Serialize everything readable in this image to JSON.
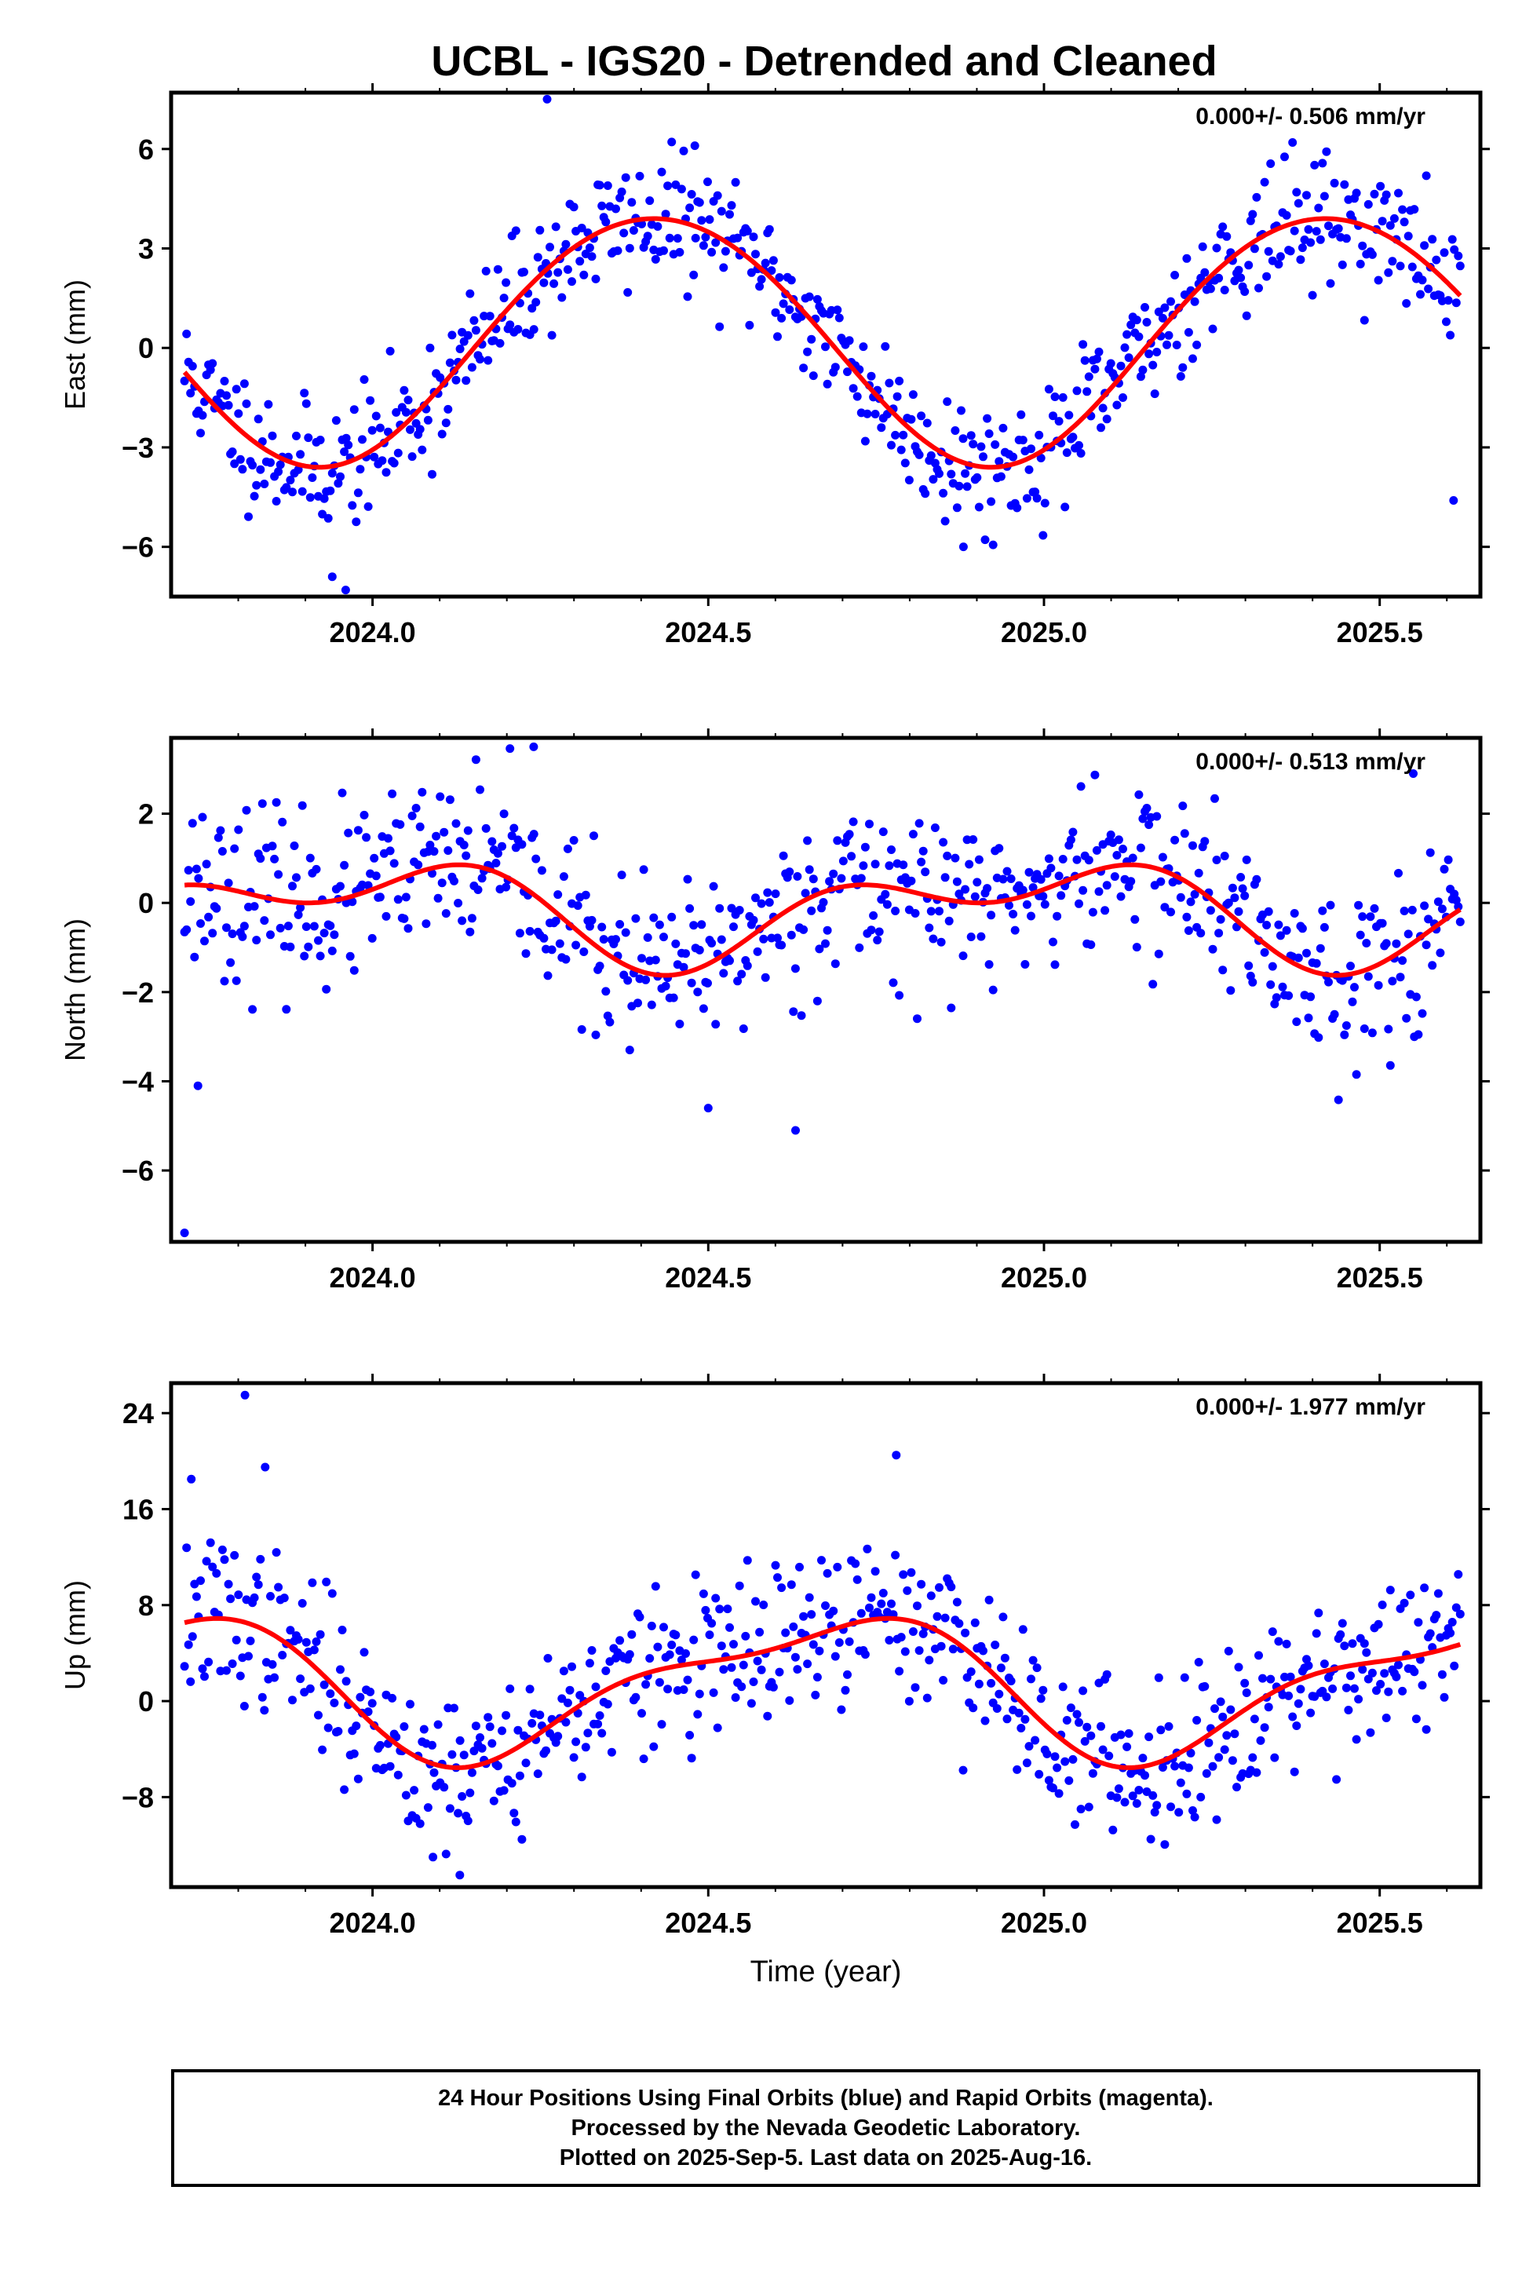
{
  "title": "UCBL - IGS20 - Detrended and Cleaned",
  "colors": {
    "points": "#0000ff",
    "fit": "#ff0000",
    "rapid": "#ff00ff",
    "frame": "#000000"
  },
  "chart_data": [
    {
      "type": "scatter",
      "ylabel": "East (mm)",
      "annotation": "0.000+/- 0.506 mm/yr",
      "xlim": [
        2023.7,
        2025.65
      ],
      "ylim": [
        -7.5,
        7.7
      ],
      "yticks": [
        6,
        3,
        0,
        -3,
        -6
      ],
      "ytick_labels": [
        "6",
        "3",
        "0",
        "−3",
        "−6"
      ],
      "xticks": [
        2024.0,
        2024.5,
        2025.0,
        2025.5
      ],
      "xtick_labels": [
        "2024.0",
        "2024.5",
        "2025.0",
        "2025.5"
      ],
      "series": [
        {
          "kind": "points",
          "x_start": 2023.72,
          "x_end": 2025.62,
          "n": 640,
          "seed": 11,
          "fit": {
            "offset": 0.3,
            "a1": 3.75,
            "p1": 2024.17,
            "a2": 0.15,
            "p2": 2024.05
          },
          "noise": 0.95,
          "outliers": [
            [
              2023.96,
              -7.3
            ],
            [
              2024.26,
              7.5
            ],
            [
              2024.88,
              -6.0
            ],
            [
              2025.61,
              -4.6
            ],
            [
              2023.94,
              -6.9
            ],
            [
              2024.48,
              6.1
            ]
          ]
        },
        {
          "kind": "fit",
          "x_start": 2023.72,
          "x_end": 2025.62,
          "fit": {
            "offset": 0.3,
            "a1": 3.75,
            "p1": 2024.17,
            "a2": 0.15,
            "p2": 2024.05
          }
        }
      ]
    },
    {
      "type": "scatter",
      "ylabel": "North (mm)",
      "annotation": "0.000+/- 0.513 mm/yr",
      "xlim": [
        2023.7,
        2025.65
      ],
      "ylim": [
        -7.6,
        3.7
      ],
      "yticks": [
        2,
        0,
        -2,
        -4,
        -6
      ],
      "ytick_labels": [
        "2",
        "0",
        "−2",
        "−4",
        "−6"
      ],
      "xticks": [
        2024.0,
        2024.5,
        2025.0,
        2025.5
      ],
      "xtick_labels": [
        "2024.0",
        "2024.5",
        "2025.0",
        "2025.5"
      ],
      "series": [
        {
          "kind": "points",
          "x_start": 2023.72,
          "x_end": 2025.62,
          "n": 640,
          "seed": 23,
          "fit": {
            "offset": -0.15,
            "a1": 0.85,
            "p1": 2023.72,
            "a2": 0.65,
            "p2": 2024.05
          },
          "noise": 0.95,
          "outliers": [
            [
              2023.72,
              -7.4
            ],
            [
              2024.63,
              -5.1
            ],
            [
              2024.5,
              -4.6
            ],
            [
              2023.74,
              -4.1
            ],
            [
              2024.24,
              3.5
            ],
            [
              2025.55,
              2.9
            ]
          ]
        },
        {
          "kind": "fit",
          "x_start": 2023.72,
          "x_end": 2025.62,
          "fit": {
            "offset": -0.15,
            "a1": 0.85,
            "p1": 2023.72,
            "a2": 0.65,
            "p2": 2024.05
          }
        }
      ]
    },
    {
      "type": "scatter",
      "ylabel": "Up (mm)",
      "xlabel": "Time (year)",
      "annotation": "0.000+/- 1.977 mm/yr",
      "xlim": [
        2023.7,
        2025.65
      ],
      "ylim": [
        -15.5,
        26.5
      ],
      "yticks": [
        24,
        16,
        8,
        0,
        -8
      ],
      "ytick_labels": [
        "24",
        "16",
        "8",
        "0",
        "−8"
      ],
      "xticks": [
        2024.0,
        2024.5,
        2025.0,
        2025.5
      ],
      "xtick_labels": [
        "2024.0",
        "2024.5",
        "2025.0",
        "2025.5"
      ],
      "series": [
        {
          "kind": "points",
          "x_start": 2023.72,
          "x_end": 2025.62,
          "n": 640,
          "seed": 37,
          "fit": {
            "offset": 1.4,
            "a1": 5.4,
            "p1": 2024.42,
            "a2": 1.9,
            "p2": 2024.22
          },
          "noise": 3.3,
          "outliers": [
            [
              2023.81,
              25.5
            ],
            [
              2024.78,
              20.5
            ],
            [
              2023.84,
              19.5
            ],
            [
              2024.13,
              -14.5
            ],
            [
              2023.73,
              18.5
            ],
            [
              2024.09,
              -13.0
            ]
          ]
        },
        {
          "kind": "fit",
          "x_start": 2023.72,
          "x_end": 2025.62,
          "fit": {
            "offset": 1.4,
            "a1": 5.4,
            "p1": 2024.42,
            "a2": 1.9,
            "p2": 2024.22
          }
        }
      ]
    }
  ],
  "footer": {
    "line1": "24 Hour Positions Using Final Orbits (blue) and Rapid Orbits (magenta).",
    "line2": "Processed by the Nevada Geodetic Laboratory.",
    "line3": "Plotted on 2025-Sep-5. Last data on 2025-Aug-16."
  }
}
